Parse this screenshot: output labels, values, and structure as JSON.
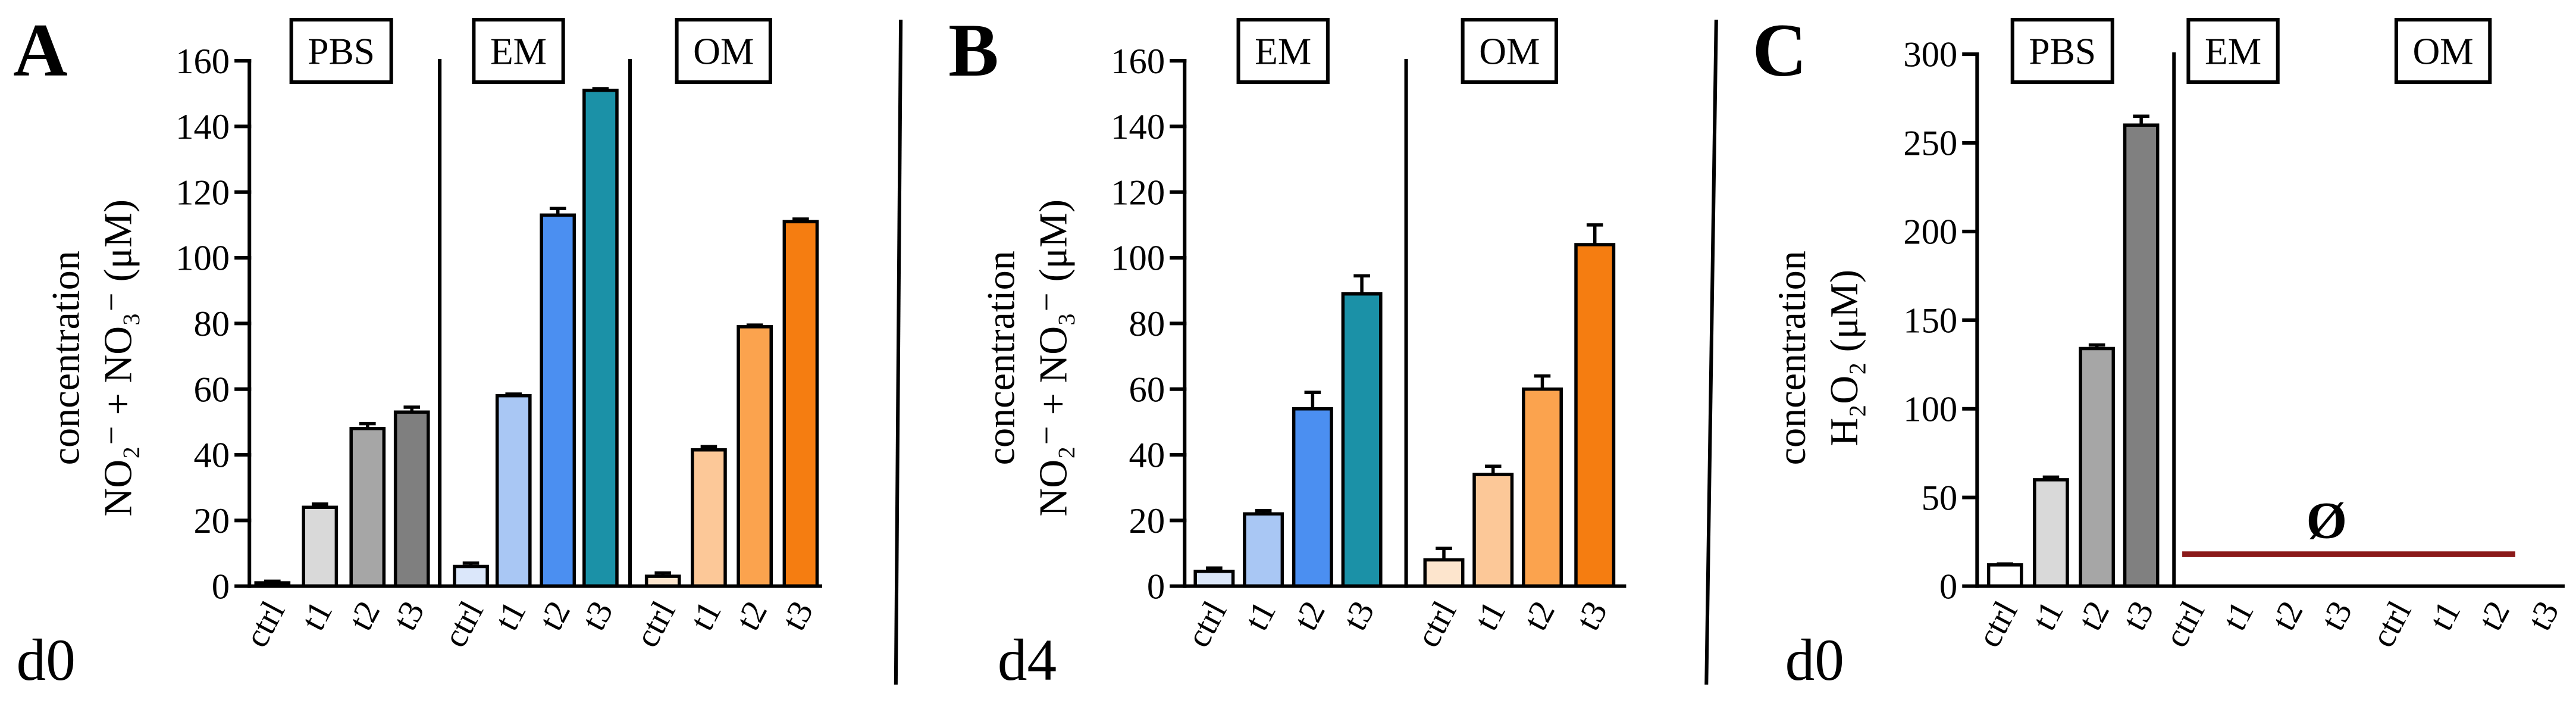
{
  "chart_data": [
    {
      "type": "bar",
      "panel_label": "A",
      "timepoint": "d0",
      "ylabel": [
        "concentration",
        "NO₂⁻ + NO₃⁻ (μM)"
      ],
      "ylim": [
        0,
        160
      ],
      "yticks": [
        0,
        20,
        40,
        60,
        80,
        100,
        120,
        140,
        160
      ],
      "groups": [
        {
          "name": "PBS",
          "categories": [
            "ctrl",
            "t1",
            "t2",
            "t3"
          ],
          "values": [
            1,
            24,
            48,
            53
          ],
          "errors": [
            0.5,
            1,
            1.5,
            1.5
          ],
          "colors": [
            "#ffffff",
            "#d9d9d9",
            "#a6a6a6",
            "#7f7f7f"
          ]
        },
        {
          "name": "EM",
          "categories": [
            "ctrl",
            "t1",
            "t2",
            "t3"
          ],
          "values": [
            6,
            58,
            113,
            151
          ],
          "errors": [
            1,
            0.5,
            2,
            0.5
          ],
          "colors": [
            "#dbe7fa",
            "#a9c7f4",
            "#4b8ff1",
            "#1b91a7"
          ]
        },
        {
          "name": "OM",
          "categories": [
            "ctrl",
            "t1",
            "t2",
            "t3"
          ],
          "values": [
            3,
            41.5,
            79,
            111
          ],
          "errors": [
            1,
            1,
            0.5,
            0.8
          ],
          "colors": [
            "#fde5cd",
            "#fcc898",
            "#fba34e",
            "#f57d11"
          ]
        }
      ]
    },
    {
      "type": "bar",
      "panel_label": "B",
      "timepoint": "d4",
      "ylabel": [
        "concentration",
        "NO₂⁻ + NO₃⁻ (μM)"
      ],
      "ylim": [
        0,
        160
      ],
      "yticks": [
        0,
        20,
        40,
        60,
        80,
        100,
        120,
        140,
        160
      ],
      "groups": [
        {
          "name": "EM",
          "categories": [
            "ctrl",
            "t1",
            "t2",
            "t3"
          ],
          "values": [
            4.5,
            22,
            54,
            89
          ],
          "errors": [
            1,
            1,
            5,
            5.5
          ],
          "colors": [
            "#dbe7fa",
            "#a9c7f4",
            "#4b8ff1",
            "#1b91a7"
          ]
        },
        {
          "name": "OM",
          "categories": [
            "ctrl",
            "t1",
            "t2",
            "t3"
          ],
          "values": [
            8,
            34,
            60,
            104
          ],
          "errors": [
            3.5,
            2.5,
            4,
            6
          ],
          "colors": [
            "#fde5cd",
            "#fcc898",
            "#fba34e",
            "#f57d11"
          ]
        }
      ]
    },
    {
      "type": "bar",
      "panel_label": "C",
      "timepoint": "d0",
      "ylabel": [
        "concentration",
        "H₂O₂ (μM)"
      ],
      "ylim": [
        0,
        300
      ],
      "yticks": [
        0,
        50,
        100,
        150,
        200,
        250,
        300
      ],
      "groups": [
        {
          "name": "PBS",
          "categories": [
            "ctrl",
            "t1",
            "t2",
            "t3"
          ],
          "values": [
            12,
            60,
            134,
            260
          ],
          "errors": [
            0.5,
            1.5,
            2,
            5
          ],
          "colors": [
            "#ffffff",
            "#d9d9d9",
            "#a6a6a6",
            "#808080"
          ]
        },
        {
          "name": "EM",
          "categories": [
            "ctrl",
            "t1",
            "t2",
            "t3"
          ],
          "values": [
            null,
            null,
            null,
            null
          ],
          "errors": [
            null,
            null,
            null,
            null
          ]
        },
        {
          "name": "OM",
          "categories": [
            "ctrl",
            "t1",
            "t2",
            "t3"
          ],
          "values": [
            null,
            null,
            null,
            null
          ],
          "errors": [
            null,
            null,
            null,
            null
          ]
        }
      ],
      "annotation": {
        "text": "Ø",
        "value": 18,
        "color": "#8b1a1a"
      }
    }
  ]
}
